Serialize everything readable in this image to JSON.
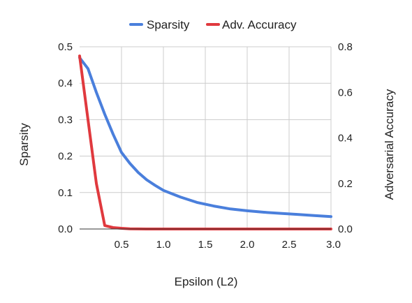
{
  "chart_data": {
    "type": "line",
    "xlabel": "Epsilon (L2)",
    "ylabel": "Sparsity",
    "y2label": "Adversarial Accuracy",
    "xlim": [
      0.0,
      3.0
    ],
    "ylim": [
      0,
      0.5
    ],
    "y2lim": [
      0,
      0.8
    ],
    "x_ticks": [
      "0.5",
      "1.0",
      "1.5",
      "2.0",
      "2.5",
      "3.0"
    ],
    "y_ticks": [
      "0.0",
      "0.1",
      "0.2",
      "0.3",
      "0.4",
      "0.5"
    ],
    "y2_ticks": [
      "0.0",
      "0.2",
      "0.4",
      "0.6",
      "0.8"
    ],
    "grid": true,
    "legend_position": "top",
    "series": [
      {
        "name": "Sparsity",
        "axis": "left",
        "color": "#4a7fdc",
        "x": [
          0.0,
          0.1,
          0.2,
          0.3,
          0.4,
          0.5,
          0.6,
          0.7,
          0.8,
          0.9,
          1.0,
          1.2,
          1.4,
          1.6,
          1.8,
          2.0,
          2.2,
          2.4,
          2.6,
          2.8,
          3.0
        ],
        "y": [
          0.47,
          0.44,
          0.375,
          0.315,
          0.26,
          0.21,
          0.18,
          0.155,
          0.135,
          0.12,
          0.106,
          0.088,
          0.073,
          0.063,
          0.055,
          0.05,
          0.046,
          0.043,
          0.04,
          0.037,
          0.034
        ]
      },
      {
        "name": "Adv. Accuracy",
        "axis": "right",
        "color": "#e0393e",
        "x": [
          0.0,
          0.1,
          0.2,
          0.3,
          0.4,
          0.5,
          0.6,
          0.8,
          1.0,
          1.5,
          2.0,
          2.5,
          3.0
        ],
        "y": [
          0.76,
          0.48,
          0.2,
          0.015,
          0.006,
          0.003,
          0.001,
          0.0,
          0.0,
          0.0,
          0.0,
          0.0,
          0.0
        ]
      }
    ]
  }
}
